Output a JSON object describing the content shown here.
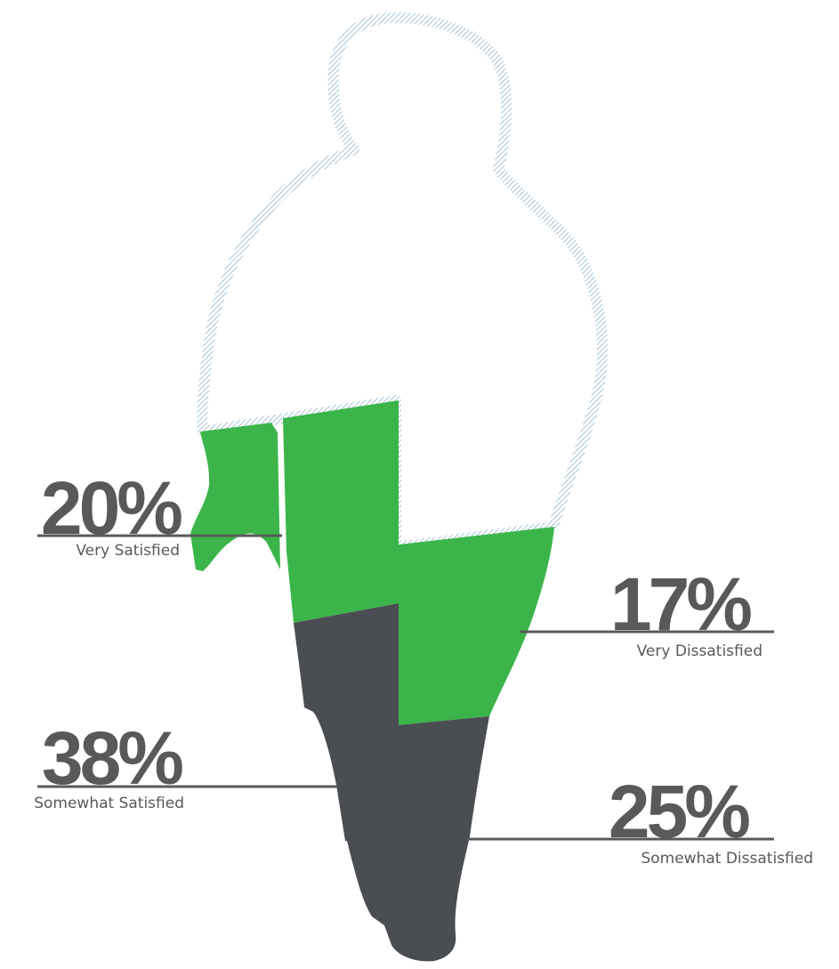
{
  "chart_data": {
    "type": "pie",
    "title": "",
    "categories": [
      "Very Satisfied",
      "Somewhat Satisfied",
      "Very Dissatisfied",
      "Somewhat Dissatisfied"
    ],
    "values": [
      20,
      38,
      17,
      25
    ],
    "unit": "%",
    "labels": [
      {
        "percent": "20%",
        "caption": "Very Satisfied"
      },
      {
        "percent": "38%",
        "caption": "Somewhat Satisfied"
      },
      {
        "percent": "17%",
        "caption": "Very Dissatisfied"
      },
      {
        "percent": "25%",
        "caption": "Somewhat Dissatisfied"
      }
    ],
    "colors": {
      "satisfied": "#3bb54a",
      "dissatisfied": "#4a4d52",
      "silhouette_outline": "#a9c3d6",
      "label_text": "#58595b",
      "leader_line": "#58595b"
    },
    "legend": "none",
    "grid": false
  }
}
